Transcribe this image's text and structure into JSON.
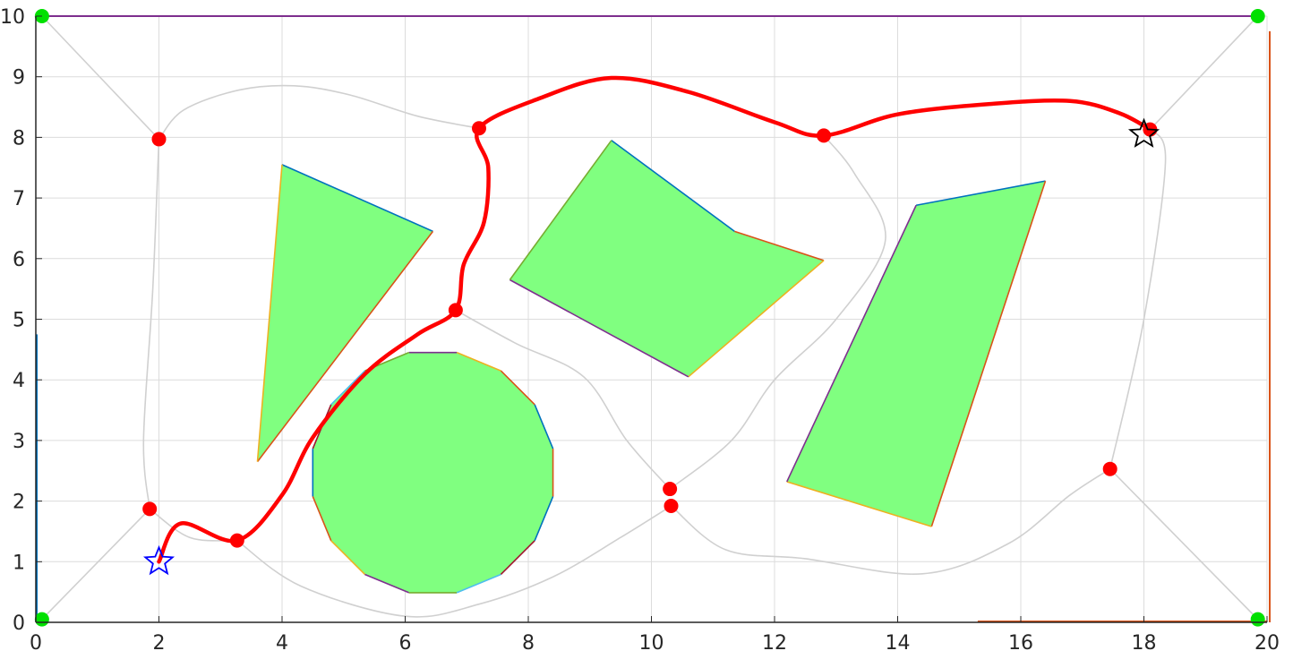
{
  "chart_data": {
    "type": "scatter",
    "title": "",
    "xlabel": "",
    "ylabel": "",
    "xlim": [
      0,
      20
    ],
    "ylim": [
      0,
      10
    ],
    "grid": true,
    "legend": "none",
    "x_ticks": [
      "0",
      "2",
      "4",
      "6",
      "8",
      "10",
      "12",
      "14",
      "16",
      "18",
      "20"
    ],
    "y_ticks": [
      "0",
      "1",
      "2",
      "3",
      "4",
      "5",
      "6",
      "7",
      "8",
      "9",
      "10"
    ],
    "obstacles": [
      {
        "name": "triangle",
        "points": [
          [
            4.0,
            7.55
          ],
          [
            6.45,
            6.45
          ],
          [
            3.6,
            2.65
          ]
        ]
      },
      {
        "name": "quadrilateral",
        "points": [
          [
            9.35,
            7.95
          ],
          [
            11.35,
            6.45
          ],
          [
            12.8,
            5.97
          ],
          [
            10.6,
            4.05
          ],
          [
            7.7,
            5.65
          ]
        ]
      },
      {
        "name": "parallelogram",
        "points": [
          [
            14.3,
            6.88
          ],
          [
            16.4,
            7.28
          ],
          [
            14.55,
            1.58
          ],
          [
            12.2,
            2.32
          ]
        ]
      },
      {
        "name": "circle",
        "center": [
          6.45,
          2.47
        ],
        "radius": 2.02,
        "sides": 16
      }
    ],
    "corner_nodes": [
      [
        0.1,
        10.0
      ],
      [
        19.85,
        10.0
      ],
      [
        0.1,
        0.05
      ],
      [
        19.85,
        0.05
      ]
    ],
    "waypoints": [
      [
        2.0,
        7.97
      ],
      [
        1.85,
        1.87
      ],
      [
        3.27,
        1.35
      ],
      [
        6.82,
        5.15
      ],
      [
        7.2,
        8.15
      ],
      [
        12.8,
        8.03
      ],
      [
        18.1,
        8.13
      ],
      [
        10.3,
        2.2
      ],
      [
        10.32,
        1.92
      ],
      [
        17.45,
        2.53
      ]
    ],
    "start": [
      2.0,
      1.0
    ],
    "goal": [
      18.0,
      8.05
    ],
    "optimal_path": [
      [
        2.0,
        1.0
      ],
      [
        2.35,
        1.63
      ],
      [
        3.27,
        1.35
      ],
      [
        4.0,
        2.1
      ],
      [
        4.5,
        3.05
      ],
      [
        5.35,
        4.1
      ],
      [
        6.2,
        4.75
      ],
      [
        6.82,
        5.15
      ],
      [
        6.95,
        5.9
      ],
      [
        7.28,
        6.6
      ],
      [
        7.35,
        7.5
      ],
      [
        7.2,
        8.15
      ],
      [
        8.2,
        8.65
      ],
      [
        9.35,
        8.98
      ],
      [
        10.6,
        8.75
      ],
      [
        12.0,
        8.25
      ],
      [
        12.8,
        8.03
      ],
      [
        14.0,
        8.38
      ],
      [
        15.5,
        8.55
      ],
      [
        16.8,
        8.6
      ],
      [
        17.6,
        8.4
      ],
      [
        18.1,
        8.13
      ]
    ],
    "roadmap_edges": [
      [
        [
          0.1,
          10.0
        ],
        [
          2.0,
          7.97
        ]
      ],
      [
        [
          19.85,
          10.0
        ],
        [
          18.1,
          8.13
        ]
      ],
      [
        [
          0.1,
          0.05
        ],
        [
          1.85,
          1.87
        ]
      ],
      [
        [
          19.85,
          0.05
        ],
        [
          17.45,
          2.53
        ]
      ],
      [
        [
          2.0,
          7.97
        ],
        [
          2.4,
          8.45
        ],
        [
          3.3,
          8.78
        ],
        [
          4.2,
          8.85
        ],
        [
          5.1,
          8.7
        ],
        [
          6.2,
          8.35
        ],
        [
          7.2,
          8.15
        ]
      ],
      [
        [
          2.0,
          7.97
        ],
        [
          1.9,
          5.5
        ],
        [
          1.75,
          3.0
        ],
        [
          1.85,
          1.87
        ]
      ],
      [
        [
          6.82,
          5.15
        ],
        [
          7.8,
          4.6
        ],
        [
          8.9,
          4.05
        ],
        [
          9.6,
          3.0
        ],
        [
          10.3,
          2.2
        ]
      ],
      [
        [
          10.3,
          2.2
        ],
        [
          11.3,
          3.0
        ],
        [
          12.0,
          4.0
        ],
        [
          13.0,
          5.0
        ],
        [
          13.8,
          6.3
        ],
        [
          13.3,
          7.4
        ],
        [
          12.8,
          8.03
        ]
      ],
      [
        [
          1.85,
          1.87
        ],
        [
          2.5,
          1.4
        ],
        [
          3.27,
          1.35
        ]
      ],
      [
        [
          3.27,
          1.35
        ],
        [
          4.3,
          0.6
        ],
        [
          6.0,
          0.1
        ],
        [
          7.2,
          0.3
        ],
        [
          8.4,
          0.75
        ],
        [
          9.5,
          1.4
        ],
        [
          10.32,
          1.92
        ]
      ],
      [
        [
          10.32,
          1.92
        ],
        [
          11.2,
          1.2
        ],
        [
          12.5,
          1.05
        ],
        [
          14.4,
          0.8
        ],
        [
          15.8,
          1.3
        ],
        [
          16.8,
          2.1
        ],
        [
          17.45,
          2.53
        ]
      ],
      [
        [
          17.45,
          2.53
        ],
        [
          18.0,
          5.0
        ],
        [
          18.35,
          7.6
        ],
        [
          18.1,
          8.13
        ]
      ]
    ],
    "colors": {
      "obstacle_fill": "#80ff80",
      "path": "#ff0000",
      "waypoint": "#ff0000",
      "corner_node": "#00e000",
      "roadmap": "#d0d0d0",
      "grid": "#dcdcdc",
      "start_marker": "#0000ff",
      "goal_marker": "#000000",
      "top_border": "#7e2f8e",
      "right_border": "#d95319",
      "left_border": "#0072bd",
      "obstacle_edges": [
        "#0072bd",
        "#d95319",
        "#edb120",
        "#7e2f8e",
        "#77ac30",
        "#4dbeee",
        "#a2142f"
      ]
    }
  }
}
